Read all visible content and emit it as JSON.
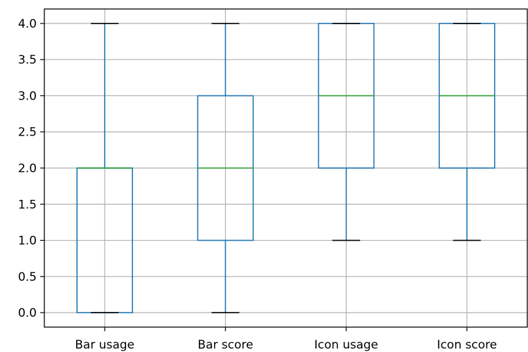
{
  "chart_data": {
    "type": "box",
    "title": "",
    "xlabel": "",
    "ylabel": "",
    "ylim": [
      -0.2,
      4.2
    ],
    "grid": true,
    "yticks": [
      0.0,
      0.5,
      1.0,
      1.5,
      2.0,
      2.5,
      3.0,
      3.5,
      4.0
    ],
    "ytick_labels": [
      "0.0",
      "0.5",
      "1.0",
      "1.5",
      "2.0",
      "2.5",
      "3.0",
      "3.5",
      "4.0"
    ],
    "categories": [
      "Bar usage",
      "Bar score",
      "Icon usage",
      "Icon score"
    ],
    "boxes": [
      {
        "whisker_low": 0,
        "q1": 0,
        "median": 2,
        "q3": 2,
        "whisker_high": 4
      },
      {
        "whisker_low": 0,
        "q1": 1,
        "median": 2,
        "q3": 3,
        "whisker_high": 4
      },
      {
        "whisker_low": 1,
        "q1": 2,
        "median": 3,
        "q3": 4,
        "whisker_high": 4
      },
      {
        "whisker_low": 1,
        "q1": 2,
        "median": 3,
        "q3": 4,
        "whisker_high": 4
      }
    ],
    "colors": {
      "box": "#1f77b4",
      "median": "#2ca02c",
      "cap": "#000000",
      "grid": "#b0b0b0",
      "axis": "#000000"
    }
  }
}
